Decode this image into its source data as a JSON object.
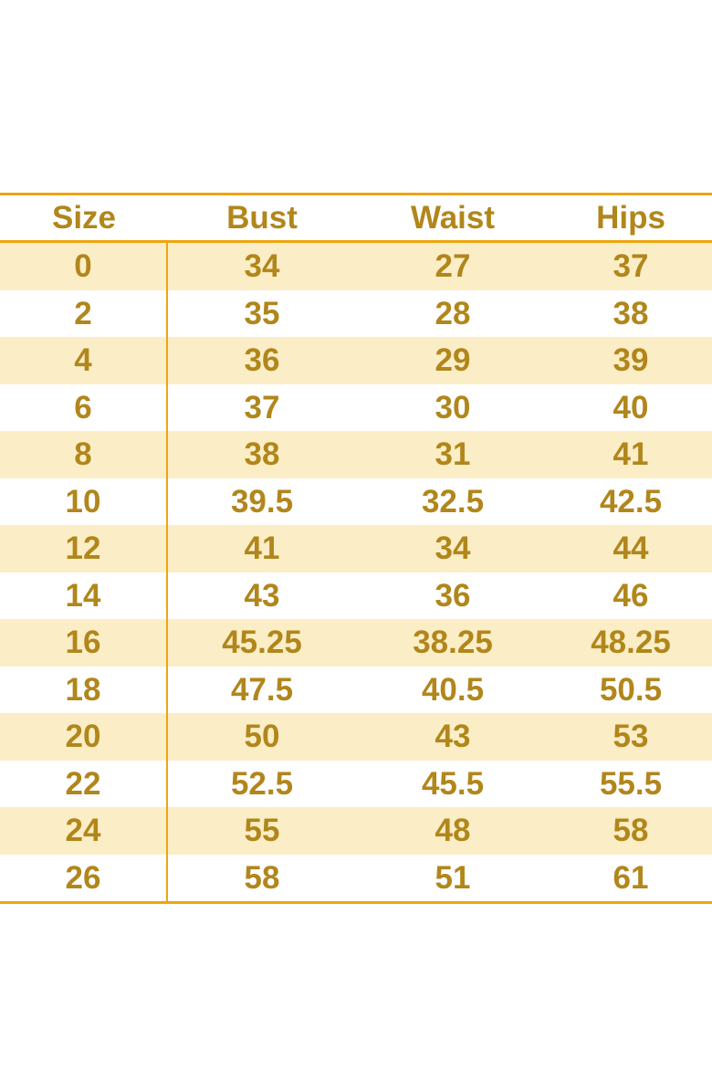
{
  "colors": {
    "line": "#EEA511",
    "row_shade": "#FBEEC6",
    "text_color": "#B1861B",
    "bg": "#FFFFFF"
  },
  "chart_data": {
    "type": "table",
    "title": "",
    "columns": [
      "Size",
      "Bust",
      "Waist",
      "Hips"
    ],
    "rows": [
      [
        "0",
        "34",
        "27",
        "37"
      ],
      [
        "2",
        "35",
        "28",
        "38"
      ],
      [
        "4",
        "36",
        "29",
        "39"
      ],
      [
        "6",
        "37",
        "30",
        "40"
      ],
      [
        "8",
        "38",
        "31",
        "41"
      ],
      [
        "10",
        "39.5",
        "32.5",
        "42.5"
      ],
      [
        "12",
        "41",
        "34",
        "44"
      ],
      [
        "14",
        "43",
        "36",
        "46"
      ],
      [
        "16",
        "45.25",
        "38.25",
        "48.25"
      ],
      [
        "18",
        "47.5",
        "40.5",
        "50.5"
      ],
      [
        "20",
        "50",
        "43",
        "53"
      ],
      [
        "22",
        "52.5",
        "45.5",
        "55.5"
      ],
      [
        "24",
        "55",
        "48",
        "58"
      ],
      [
        "26",
        "58",
        "51",
        "61"
      ]
    ],
    "layout": {
      "shaded_rows": "alternating starting with first data row",
      "vertical_divider_after_column": "Size",
      "horizontal_rules": [
        "above header",
        "below header",
        "below last row"
      ],
      "grid": "off"
    }
  }
}
